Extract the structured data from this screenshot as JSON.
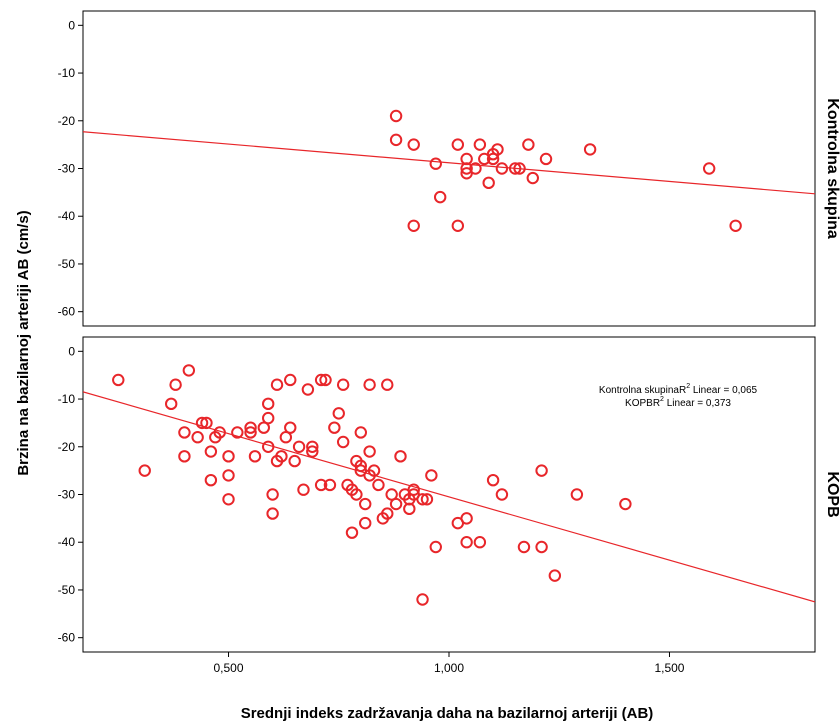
{
  "chart_data": {
    "type": "scatter",
    "xlabel": "Srednji indeks zadržavanja daha na bazilarnoj arteriji (AB)",
    "ylabel": "Brzina na bazilarnoj arteriji AB  (cm/s)",
    "xlim": [
      0.17,
      1.83
    ],
    "ylim": [
      -63,
      3
    ],
    "x_ticks": [
      {
        "value": 0.5,
        "label": "0,500"
      },
      {
        "value": 1.0,
        "label": "1,000"
      },
      {
        "value": 1.5,
        "label": "1,500"
      }
    ],
    "y_ticks": [
      {
        "value": 0,
        "label": "0"
      },
      {
        "value": -10,
        "label": "-10"
      },
      {
        "value": -20,
        "label": "-20"
      },
      {
        "value": -30,
        "label": "-30"
      },
      {
        "value": -40,
        "label": "-40"
      },
      {
        "value": -50,
        "label": "-50"
      },
      {
        "value": -60,
        "label": "-60"
      }
    ],
    "marker_color": "#e8262a",
    "line_color": "#e8262a",
    "annotation": {
      "line1_prefix": "Kontrolna skupinaR",
      "line1_sup": "2",
      "line1_suffix": " Linear = 0,065",
      "line2_prefix": "KOPBR",
      "line2_sup": "2",
      "line2_suffix": " Linear = 0,373"
    },
    "panels": [
      {
        "label": "Kontrolna skupina",
        "fit_line": {
          "x1": 0.17,
          "y1": -22.3,
          "x2": 1.83,
          "y2": -35.3
        },
        "points": [
          [
            0.88,
            -19
          ],
          [
            0.88,
            -24
          ],
          [
            0.92,
            -25
          ],
          [
            0.97,
            -29
          ],
          [
            0.98,
            -36
          ],
          [
            0.92,
            -42
          ],
          [
            1.02,
            -42
          ],
          [
            1.02,
            -25
          ],
          [
            1.04,
            -28
          ],
          [
            1.04,
            -30
          ],
          [
            1.04,
            -31
          ],
          [
            1.06,
            -30
          ],
          [
            1.07,
            -25
          ],
          [
            1.08,
            -28
          ],
          [
            1.09,
            -33
          ],
          [
            1.1,
            -28
          ],
          [
            1.1,
            -27
          ],
          [
            1.11,
            -26
          ],
          [
            1.12,
            -30
          ],
          [
            1.15,
            -30
          ],
          [
            1.16,
            -30
          ],
          [
            1.18,
            -25
          ],
          [
            1.19,
            -32
          ],
          [
            1.22,
            -28
          ],
          [
            1.32,
            -26
          ],
          [
            1.59,
            -30
          ],
          [
            1.65,
            -42
          ]
        ]
      },
      {
        "label": "KOPB",
        "fit_line": {
          "x1": 0.17,
          "y1": -8.5,
          "x2": 1.83,
          "y2": -52.5
        },
        "points": [
          [
            0.25,
            -6
          ],
          [
            0.31,
            -25
          ],
          [
            0.37,
            -11
          ],
          [
            0.38,
            -7
          ],
          [
            0.4,
            -17
          ],
          [
            0.4,
            -22
          ],
          [
            0.41,
            -4
          ],
          [
            0.43,
            -18
          ],
          [
            0.44,
            -15
          ],
          [
            0.45,
            -15
          ],
          [
            0.46,
            -21
          ],
          [
            0.46,
            -27
          ],
          [
            0.47,
            -18
          ],
          [
            0.48,
            -17
          ],
          [
            0.5,
            -22
          ],
          [
            0.5,
            -26
          ],
          [
            0.5,
            -31
          ],
          [
            0.52,
            -17
          ],
          [
            0.55,
            -16
          ],
          [
            0.55,
            -17
          ],
          [
            0.56,
            -22
          ],
          [
            0.58,
            -16
          ],
          [
            0.59,
            -11
          ],
          [
            0.59,
            -14
          ],
          [
            0.59,
            -20
          ],
          [
            0.6,
            -30
          ],
          [
            0.6,
            -34
          ],
          [
            0.61,
            -23
          ],
          [
            0.61,
            -7
          ],
          [
            0.62,
            -22
          ],
          [
            0.63,
            -18
          ],
          [
            0.64,
            -6
          ],
          [
            0.64,
            -16
          ],
          [
            0.65,
            -23
          ],
          [
            0.66,
            -20
          ],
          [
            0.67,
            -29
          ],
          [
            0.68,
            -8
          ],
          [
            0.69,
            -21
          ],
          [
            0.69,
            -20
          ],
          [
            0.71,
            -28
          ],
          [
            0.71,
            -6
          ],
          [
            0.72,
            -6
          ],
          [
            0.73,
            -28
          ],
          [
            0.74,
            -16
          ],
          [
            0.75,
            -13
          ],
          [
            0.76,
            -19
          ],
          [
            0.76,
            -7
          ],
          [
            0.77,
            -28
          ],
          [
            0.78,
            -29
          ],
          [
            0.78,
            -38
          ],
          [
            0.79,
            -23
          ],
          [
            0.79,
            -30
          ],
          [
            0.8,
            -17
          ],
          [
            0.8,
            -24
          ],
          [
            0.8,
            -25
          ],
          [
            0.81,
            -36
          ],
          [
            0.81,
            -32
          ],
          [
            0.82,
            -26
          ],
          [
            0.82,
            -21
          ],
          [
            0.82,
            -7
          ],
          [
            0.83,
            -25
          ],
          [
            0.84,
            -28
          ],
          [
            0.85,
            -35
          ],
          [
            0.86,
            -7
          ],
          [
            0.86,
            -34
          ],
          [
            0.87,
            -30
          ],
          [
            0.88,
            -32
          ],
          [
            0.89,
            -22
          ],
          [
            0.9,
            -30
          ],
          [
            0.91,
            -31
          ],
          [
            0.91,
            -33
          ],
          [
            0.92,
            -29
          ],
          [
            0.92,
            -30
          ],
          [
            0.94,
            -31
          ],
          [
            0.94,
            -52
          ],
          [
            0.95,
            -31
          ],
          [
            0.96,
            -26
          ],
          [
            0.97,
            -41
          ],
          [
            1.02,
            -36
          ],
          [
            1.04,
            -35
          ],
          [
            1.04,
            -40
          ],
          [
            1.07,
            -40
          ],
          [
            1.1,
            -27
          ],
          [
            1.12,
            -30
          ],
          [
            1.17,
            -41
          ],
          [
            1.21,
            -25
          ],
          [
            1.21,
            -41
          ],
          [
            1.24,
            -47
          ],
          [
            1.29,
            -30
          ],
          [
            1.4,
            -32
          ]
        ]
      }
    ]
  }
}
